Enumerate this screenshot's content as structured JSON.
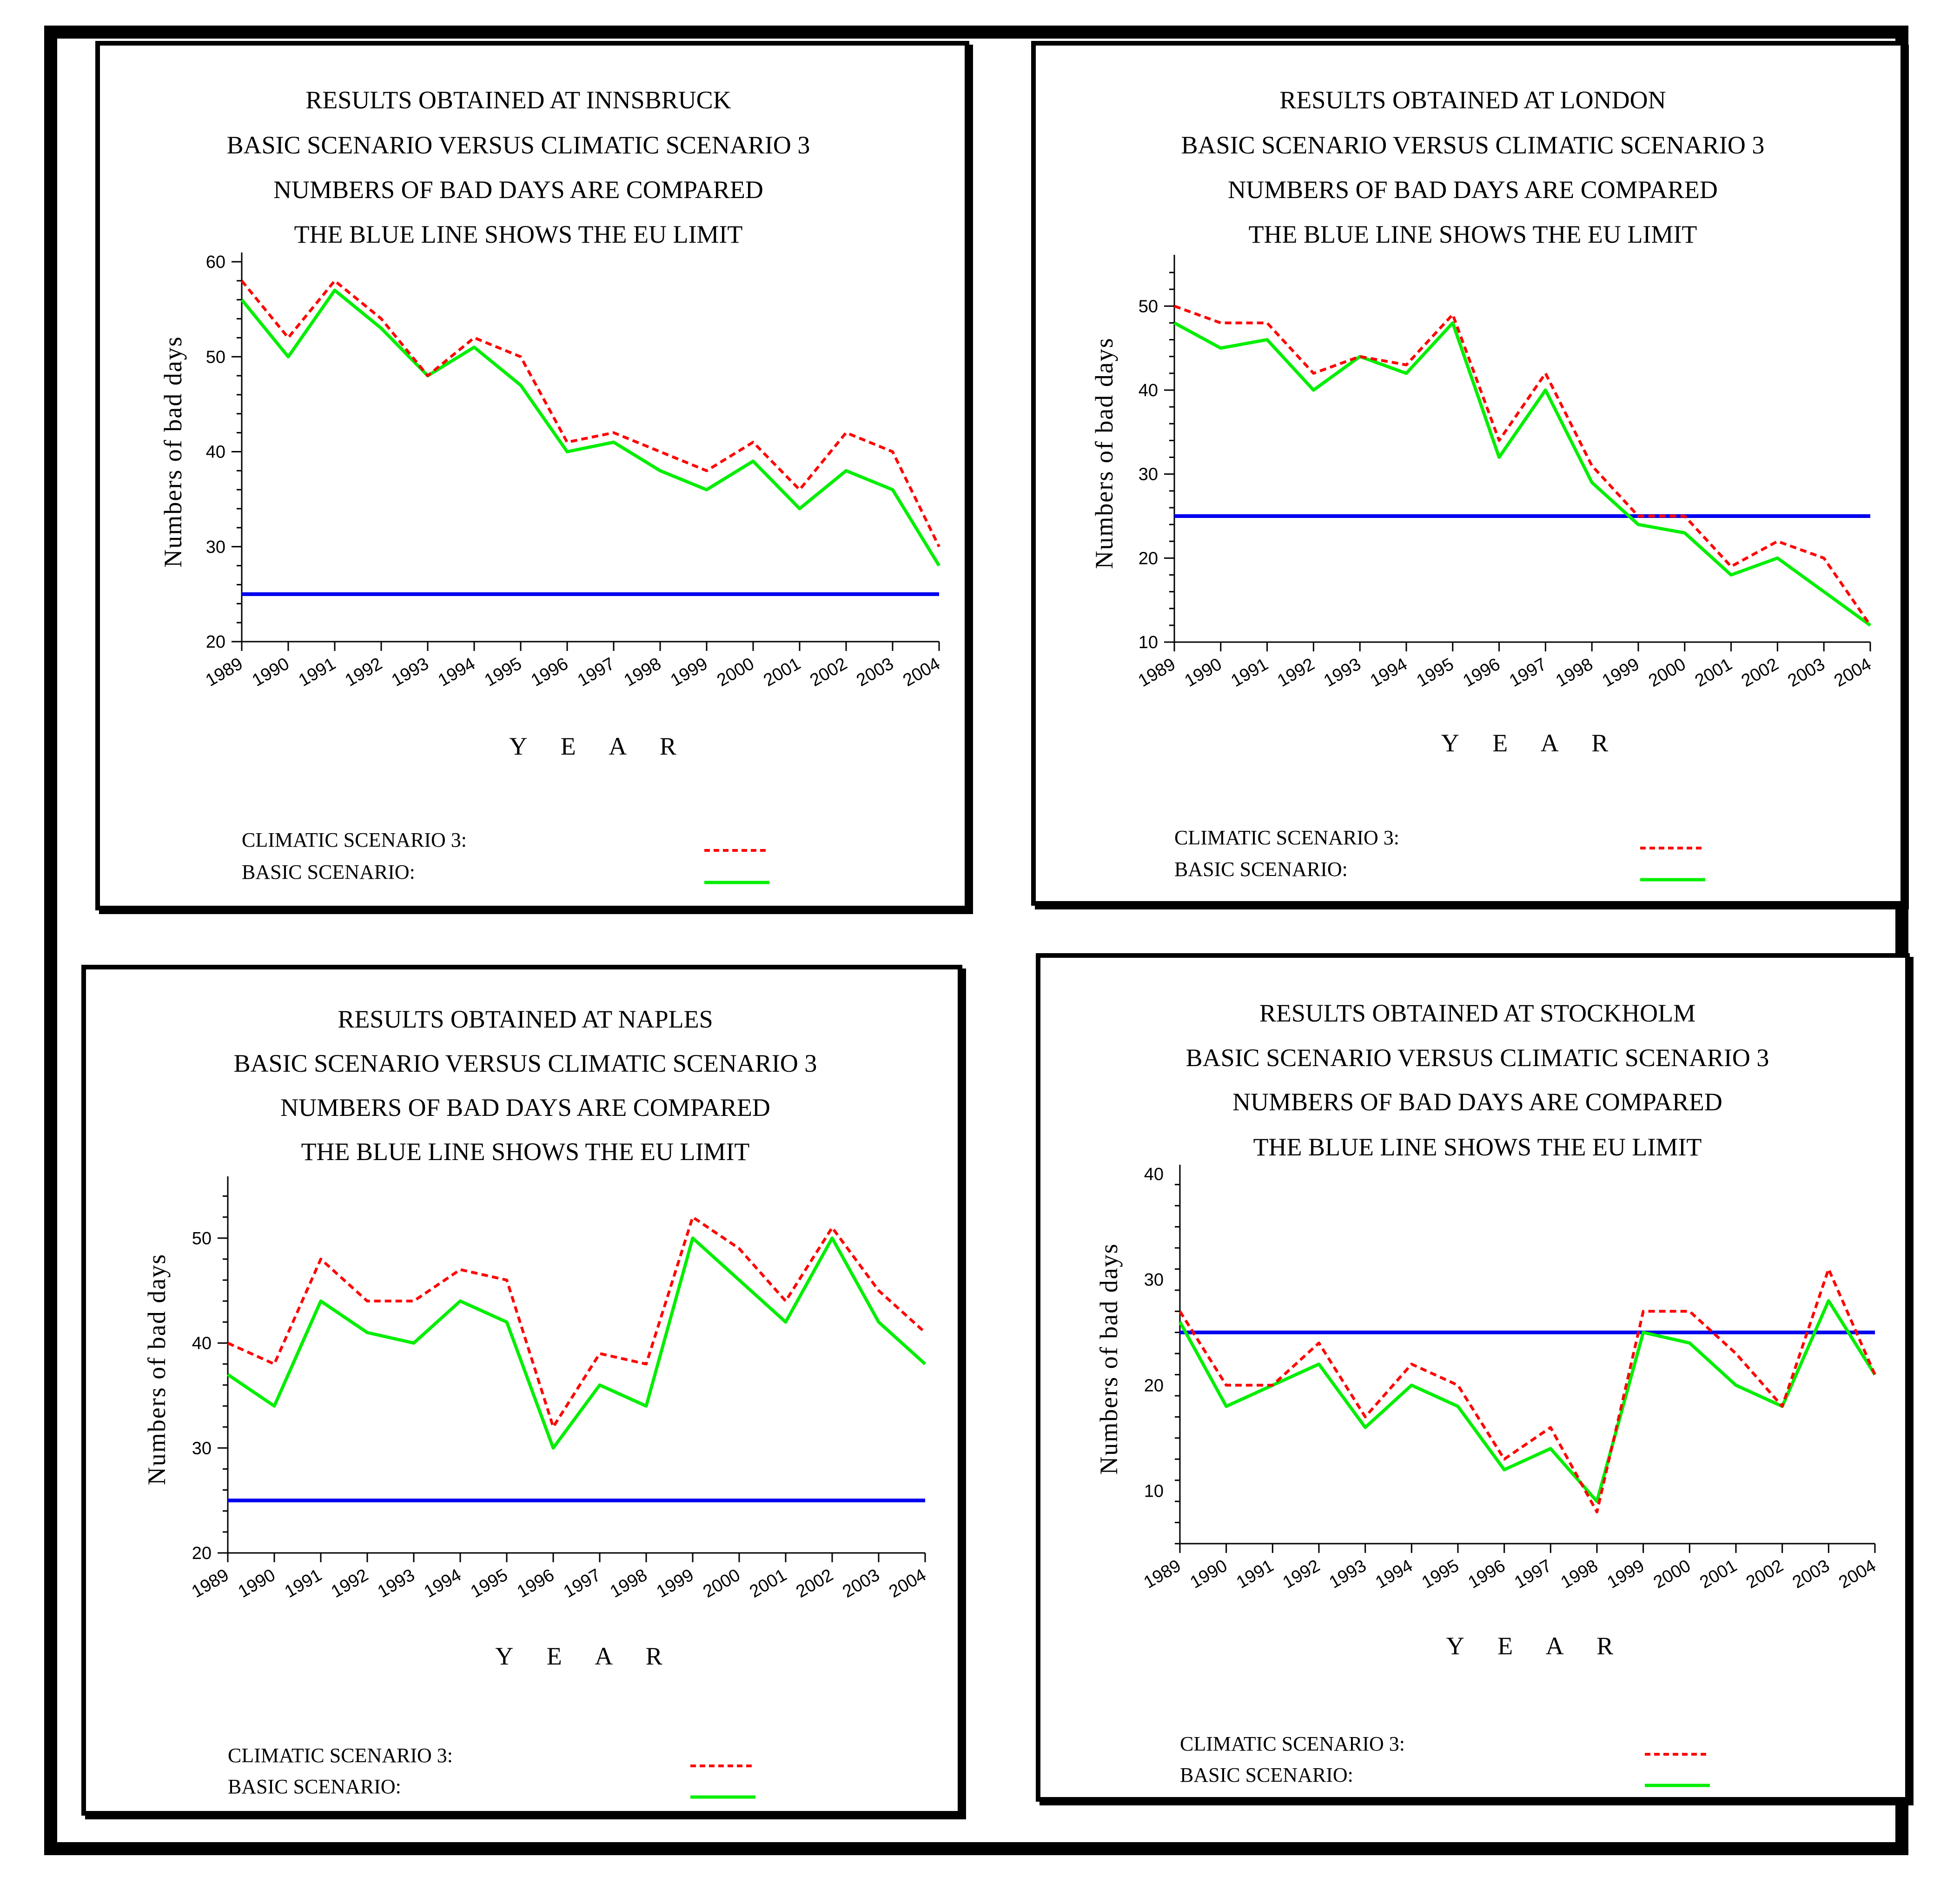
{
  "colors": {
    "climatic": "#ff0000",
    "basic": "#00ee00",
    "eu_limit": "#0000ee",
    "axis": "#000000"
  },
  "chart_data": [
    {
      "type": "line",
      "title_lines": [
        "RESULTS  OBTAINED  AT  INNSBRUCK",
        "BASIC  SCENARIO  VERSUS  CLIMATIC  SCENARIO 3",
        "NUMBERS  OF BAD  DAYS  ARE  COMPARED",
        "THE  BLUE  LINE  SHOWS  THE  EU  LIMIT"
      ],
      "xlabel": "Y E A R",
      "ylabel": "Numbers  of  bad  days",
      "categories": [
        "1989",
        "1990",
        "1991",
        "1992",
        "1993",
        "1994",
        "1995",
        "1996",
        "1997",
        "1998",
        "1999",
        "2000",
        "2001",
        "2002",
        "2003",
        "2004"
      ],
      "ylim": [
        20,
        60
      ],
      "yticks": [
        20,
        30,
        40,
        50,
        60
      ],
      "eu_limit": 25,
      "series": [
        {
          "name": "CLIMATIC  SCENARIO  3:",
          "style": "dashed",
          "values": [
            58,
            52,
            58,
            54,
            48,
            52,
            50,
            41,
            42,
            40,
            38,
            41,
            36,
            42,
            40,
            30
          ]
        },
        {
          "name": "BASIC  SCENARIO:",
          "style": "solid",
          "values": [
            56,
            50,
            57,
            53,
            48,
            51,
            47,
            40,
            41,
            38,
            36,
            39,
            34,
            38,
            36,
            28
          ]
        }
      ],
      "legend": {
        "climatic_label": "CLIMATIC  SCENARIO  3:",
        "basic_label": "BASIC  SCENARIO:"
      }
    },
    {
      "type": "line",
      "title_lines": [
        "RESULTS  OBTAINED  AT  LONDON",
        "BASIC  SCENARIO  VERSUS  CLIMATIC  SCENARIO 3",
        "NUMBERS  OF BAD  DAYS  ARE  COMPARED",
        "THE  BLUE  LINE  SHOWS  THE  EU  LIMIT"
      ],
      "xlabel": "Y E A R",
      "ylabel": "Numbers  of  bad  days",
      "categories": [
        "1989",
        "1990",
        "1991",
        "1992",
        "1993",
        "1994",
        "1995",
        "1996",
        "1997",
        "1998",
        "1999",
        "2000",
        "2001",
        "2002",
        "2003",
        "2004"
      ],
      "ylim": [
        10,
        55
      ],
      "yticks": [
        10,
        20,
        30,
        40,
        50
      ],
      "eu_limit": 25,
      "series": [
        {
          "name": "CLIMATIC  SCENARIO  3:",
          "style": "dashed",
          "values": [
            50,
            48,
            48,
            42,
            44,
            43,
            49,
            34,
            42,
            31,
            25,
            25,
            19,
            22,
            20,
            12
          ]
        },
        {
          "name": "BASIC  SCENARIO:",
          "style": "solid",
          "values": [
            48,
            45,
            46,
            40,
            44,
            42,
            48,
            32,
            40,
            29,
            24,
            23,
            18,
            20,
            16,
            12
          ]
        }
      ],
      "legend": {
        "climatic_label": "CLIMATIC  SCENARIO  3:",
        "basic_label": "BASIC  SCENARIO:"
      }
    },
    {
      "type": "line",
      "title_lines": [
        "RESULTS  OBTAINED  AT  NAPLES",
        "BASIC  SCENARIO  VERSUS  CLIMATIC  SCENARIO 3",
        "NUMBERS  OF BAD  DAYS  ARE  COMPARED",
        "THE  BLUE  LINE  SHOWS  THE  EU  LIMIT"
      ],
      "xlabel": "Y E A R",
      "ylabel": "Numbers  of  bad  days",
      "categories": [
        "1989",
        "1990",
        "1991",
        "1992",
        "1993",
        "1994",
        "1995",
        "1996",
        "1997",
        "1998",
        "1999",
        "2000",
        "2001",
        "2002",
        "2003",
        "2004"
      ],
      "ylim": [
        20,
        55
      ],
      "yticks": [
        20,
        30,
        40,
        50
      ],
      "eu_limit": 25,
      "series": [
        {
          "name": "CLIMATIC  SCENARIO  3:",
          "style": "dashed",
          "values": [
            40,
            38,
            48,
            44,
            44,
            47,
            46,
            32,
            39,
            38,
            52,
            49,
            44,
            51,
            45,
            41
          ]
        },
        {
          "name": "BASIC  SCENARIO:",
          "style": "solid",
          "values": [
            37,
            34,
            44,
            41,
            40,
            44,
            42,
            30,
            36,
            34,
            50,
            46,
            42,
            50,
            42,
            38
          ]
        }
      ],
      "legend": {
        "climatic_label": "CLIMATIC  SCENARIO  3:",
        "basic_label": "BASIC  SCENARIO:"
      }
    },
    {
      "type": "line",
      "title_lines": [
        "RESULTS  OBTAINED  AT  STOCKHOLM",
        "BASIC  SCENARIO  VERSUS  CLIMATIC  SCENARIO 3",
        "NUMBERS  OF BAD  DAYS  ARE  COMPARED",
        "THE  BLUE  LINE  SHOWS  THE  EU  LIMIT"
      ],
      "xlabel": "Y E A R",
      "ylabel": "Numbers  of  bad  days",
      "categories": [
        "1989",
        "1990",
        "1991",
        "1992",
        "1993",
        "1994",
        "1995",
        "1996",
        "1997",
        "1998",
        "1999",
        "2000",
        "2001",
        "2002",
        "2003",
        "2004"
      ],
      "ylim": [
        5,
        40
      ],
      "yticks": [
        10,
        20,
        30,
        40
      ],
      "eu_limit": 25,
      "series": [
        {
          "name": "CLIMATIC  SCENARIO  3:",
          "style": "dashed",
          "values": [
            27,
            20,
            20,
            24,
            17,
            22,
            20,
            13,
            16,
            8,
            27,
            27,
            23,
            18,
            31,
            21
          ]
        },
        {
          "name": "BASIC  SCENARIO:",
          "style": "solid",
          "values": [
            26,
            18,
            20,
            22,
            16,
            20,
            18,
            12,
            14,
            9,
            25,
            24,
            20,
            18,
            28,
            21
          ]
        }
      ],
      "legend": {
        "climatic_label": "CLIMATIC  SCENARIO  3:",
        "basic_label": "BASIC  SCENARIO:"
      }
    }
  ]
}
